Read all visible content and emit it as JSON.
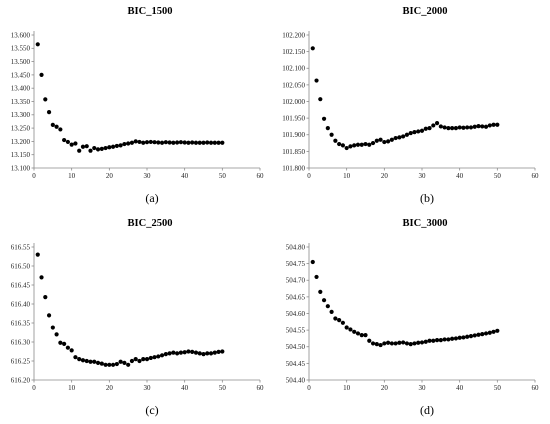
{
  "chart_data": [
    {
      "type": "scatter",
      "title": "BIC_1500",
      "caption": "(a)",
      "xlim": [
        0,
        60
      ],
      "ylim": [
        13.1,
        13.6
      ],
      "xticks": [
        0,
        10,
        20,
        30,
        40,
        50,
        60
      ],
      "yticks": [
        "13.100",
        "13.150",
        "13.200",
        "13.250",
        "13.300",
        "13.350",
        "13.400",
        "13.450",
        "13.500",
        "13.550",
        "13.600"
      ],
      "x": [
        1,
        2,
        3,
        4,
        5,
        6,
        7,
        8,
        9,
        10,
        11,
        12,
        13,
        14,
        15,
        16,
        17,
        18,
        19,
        20,
        21,
        22,
        23,
        24,
        25,
        26,
        27,
        28,
        29,
        30,
        31,
        32,
        33,
        34,
        35,
        36,
        37,
        38,
        39,
        40,
        41,
        42,
        43,
        44,
        45,
        46,
        47,
        48,
        49,
        50
      ],
      "y": [
        13.565,
        13.45,
        13.358,
        13.31,
        13.262,
        13.255,
        13.245,
        13.205,
        13.198,
        13.188,
        13.192,
        13.165,
        13.18,
        13.182,
        13.165,
        13.175,
        13.17,
        13.172,
        13.175,
        13.178,
        13.18,
        13.183,
        13.185,
        13.19,
        13.192,
        13.195,
        13.2,
        13.198,
        13.195,
        13.197,
        13.198,
        13.197,
        13.196,
        13.195,
        13.197,
        13.196,
        13.195,
        13.196,
        13.197,
        13.196,
        13.195,
        13.196,
        13.195,
        13.195,
        13.195,
        13.196,
        13.195,
        13.195,
        13.195,
        13.195
      ]
    },
    {
      "type": "scatter",
      "title": "BIC_2000",
      "caption": "(b)",
      "xlim": [
        0,
        60
      ],
      "ylim": [
        101.8,
        102.2
      ],
      "xticks": [
        0,
        10,
        20,
        30,
        40,
        50,
        60
      ],
      "yticks": [
        "101.800",
        "101.850",
        "101.900",
        "101.950",
        "102.000",
        "102.050",
        "102.100",
        "102.150",
        "102.200"
      ],
      "x": [
        1,
        2,
        3,
        4,
        5,
        6,
        7,
        8,
        9,
        10,
        11,
        12,
        13,
        14,
        15,
        16,
        17,
        18,
        19,
        20,
        21,
        22,
        23,
        24,
        25,
        26,
        27,
        28,
        29,
        30,
        31,
        32,
        33,
        34,
        35,
        36,
        37,
        38,
        39,
        40,
        41,
        42,
        43,
        44,
        45,
        46,
        47,
        48,
        49,
        50
      ],
      "y": [
        102.16,
        102.063,
        102.007,
        101.948,
        101.92,
        101.9,
        101.882,
        101.872,
        101.868,
        101.86,
        101.865,
        101.868,
        101.87,
        101.87,
        101.872,
        101.87,
        101.875,
        101.882,
        101.885,
        101.878,
        101.88,
        101.885,
        101.89,
        101.892,
        101.895,
        101.9,
        101.905,
        101.908,
        101.91,
        101.912,
        101.918,
        101.92,
        101.928,
        101.935,
        101.925,
        101.922,
        101.92,
        101.92,
        101.92,
        101.922,
        101.921,
        101.922,
        101.922,
        101.924,
        101.926,
        101.925,
        101.924,
        101.928,
        101.93,
        101.93
      ]
    },
    {
      "type": "scatter",
      "title": "BIC_2500",
      "caption": "(c)",
      "xlim": [
        0,
        60
      ],
      "ylim": [
        616.2,
        616.55
      ],
      "xticks": [
        0,
        10,
        20,
        30,
        40,
        50,
        60
      ],
      "yticks": [
        "616.20",
        "616.25",
        "616.30",
        "616.35",
        "616.40",
        "616.45",
        "616.50",
        "616.55"
      ],
      "x": [
        1,
        2,
        3,
        4,
        5,
        6,
        7,
        8,
        9,
        10,
        11,
        12,
        13,
        14,
        15,
        16,
        17,
        18,
        19,
        20,
        21,
        22,
        23,
        24,
        25,
        26,
        27,
        28,
        29,
        30,
        31,
        32,
        33,
        34,
        35,
        36,
        37,
        38,
        39,
        40,
        41,
        42,
        43,
        44,
        45,
        46,
        47,
        48,
        49,
        50
      ],
      "y": [
        616.53,
        616.47,
        616.418,
        616.37,
        616.338,
        616.32,
        616.298,
        616.295,
        616.285,
        616.278,
        616.26,
        616.255,
        616.252,
        616.25,
        616.248,
        616.248,
        616.245,
        616.243,
        616.24,
        616.24,
        616.24,
        616.242,
        616.248,
        616.245,
        616.24,
        616.25,
        616.255,
        616.25,
        616.255,
        616.255,
        616.258,
        616.26,
        616.262,
        616.265,
        616.268,
        616.27,
        616.272,
        616.27,
        616.272,
        616.273,
        616.275,
        616.274,
        616.272,
        616.27,
        616.268,
        616.27,
        616.27,
        616.272,
        616.274,
        616.275
      ]
    },
    {
      "type": "scatter",
      "title": "BIC_3000",
      "caption": "(d)",
      "xlim": [
        0,
        60
      ],
      "ylim": [
        504.4,
        504.8
      ],
      "xticks": [
        0,
        10,
        20,
        30,
        40,
        50,
        60
      ],
      "yticks": [
        "504.40",
        "504.45",
        "504.50",
        "504.55",
        "504.60",
        "504.65",
        "504.70",
        "504.75",
        "504.80"
      ],
      "x": [
        1,
        2,
        3,
        4,
        5,
        6,
        7,
        8,
        9,
        10,
        11,
        12,
        13,
        14,
        15,
        16,
        17,
        18,
        19,
        20,
        21,
        22,
        23,
        24,
        25,
        26,
        27,
        28,
        29,
        30,
        31,
        32,
        33,
        34,
        35,
        36,
        37,
        38,
        39,
        40,
        41,
        42,
        43,
        44,
        45,
        46,
        47,
        48,
        49,
        50
      ],
      "y": [
        504.755,
        504.71,
        504.665,
        504.64,
        504.622,
        504.605,
        504.585,
        504.58,
        504.572,
        504.558,
        504.552,
        504.545,
        504.54,
        504.535,
        504.535,
        504.518,
        504.51,
        504.508,
        504.505,
        504.51,
        504.512,
        504.51,
        504.51,
        504.512,
        504.513,
        504.51,
        504.508,
        504.51,
        504.512,
        504.513,
        504.515,
        504.518,
        504.518,
        504.52,
        504.52,
        504.522,
        504.522,
        504.524,
        504.525,
        504.527,
        504.528,
        504.53,
        504.532,
        504.534,
        504.536,
        504.538,
        504.54,
        504.542,
        504.545,
        504.548
      ]
    }
  ]
}
